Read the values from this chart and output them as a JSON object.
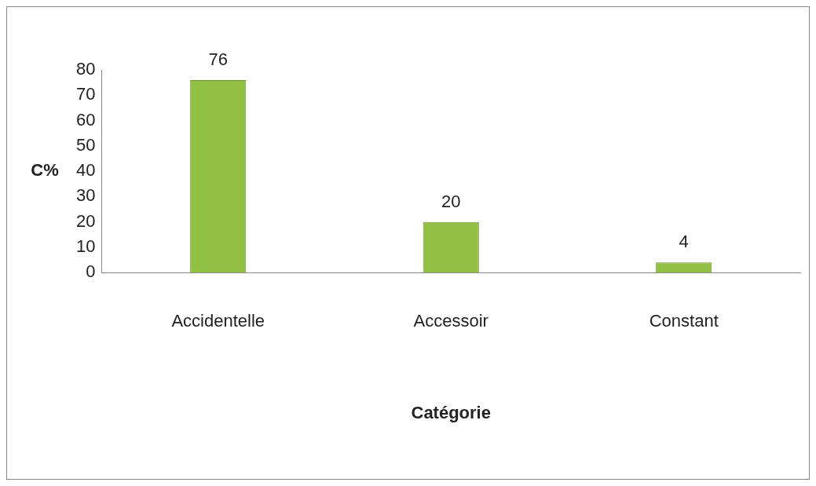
{
  "chart_data": {
    "type": "bar",
    "categories": [
      "Accidentelle",
      "Accessoir",
      "Constant"
    ],
    "values": [
      76,
      20,
      4
    ],
    "color": "#92c045",
    "xlabel": "Catégorie",
    "ylabel": "C%",
    "ylim": [
      0,
      80
    ],
    "yticks": [
      0,
      10,
      20,
      30,
      40,
      50,
      60,
      70,
      80
    ],
    "grid": false,
    "legend": false,
    "data_labels": true
  }
}
